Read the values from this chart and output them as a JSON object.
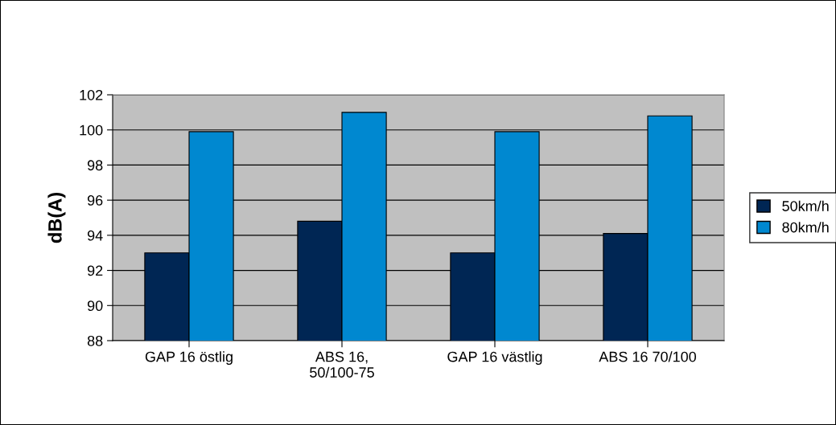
{
  "chart_data": {
    "type": "bar",
    "ylabel": "dB(A)",
    "categories": [
      "GAP 16 östlig",
      "ABS 16,\n50/100-75",
      "GAP 16 västlig",
      "ABS 16 70/100"
    ],
    "series": [
      {
        "name": "50km/h",
        "color": "#002654",
        "values": [
          93.0,
          94.8,
          93.0,
          94.1
        ]
      },
      {
        "name": "80km/h",
        "color": "#0088d0",
        "values": [
          99.9,
          101.0,
          99.9,
          100.8
        ]
      }
    ],
    "ylim": [
      88,
      102
    ],
    "yticks": [
      88,
      90,
      92,
      94,
      96,
      98,
      100,
      102
    ],
    "grid": "y",
    "legend": "right"
  }
}
